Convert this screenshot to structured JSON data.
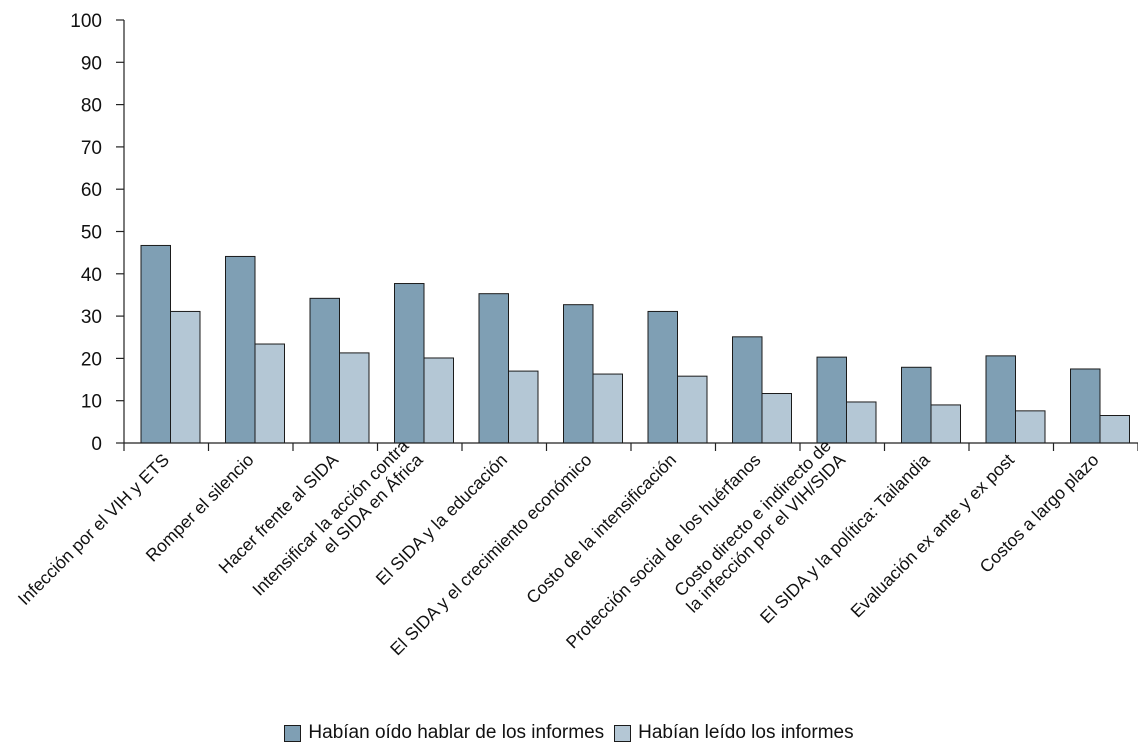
{
  "chart_data": {
    "type": "bar",
    "title": "",
    "xlabel": "",
    "ylabel": "",
    "ylim": [
      0,
      100
    ],
    "yticks": [
      0,
      10,
      20,
      30,
      40,
      50,
      60,
      70,
      80,
      90,
      100
    ],
    "grid": false,
    "legend_position": "bottom-center",
    "categories": [
      [
        "Infección por el VIH y ETS"
      ],
      [
        "Romper el silencio"
      ],
      [
        "Hacer frente al SIDA"
      ],
      [
        "Intensificar la acción contra",
        "el SIDA en África"
      ],
      [
        "El SIDA y la educación"
      ],
      [
        "El SIDA y el crecimiento económico"
      ],
      [
        "Costo de la intensificación"
      ],
      [
        "Protección social de los huérfanos"
      ],
      [
        "Costo directo e indirecto de",
        "la infección por el VIH/SIDA"
      ],
      [
        "El SIDA y la política: Tailandia"
      ],
      [
        "Evaluación ex ante y ex post"
      ],
      [
        "Costos a largo plazo"
      ]
    ],
    "series": [
      {
        "name": "Habían oído hablar de los informes",
        "color": "#7f9fb4",
        "values": [
          46.7,
          44.1,
          34.2,
          37.7,
          35.3,
          32.7,
          31.1,
          25.1,
          20.3,
          17.9,
          20.6,
          17.5
        ]
      },
      {
        "name": "Habían leído los informes",
        "color": "#b4c7d5",
        "values": [
          31.1,
          23.4,
          21.3,
          20.1,
          17.0,
          16.3,
          15.8,
          11.7,
          9.7,
          9.0,
          7.6,
          6.5
        ]
      }
    ]
  }
}
